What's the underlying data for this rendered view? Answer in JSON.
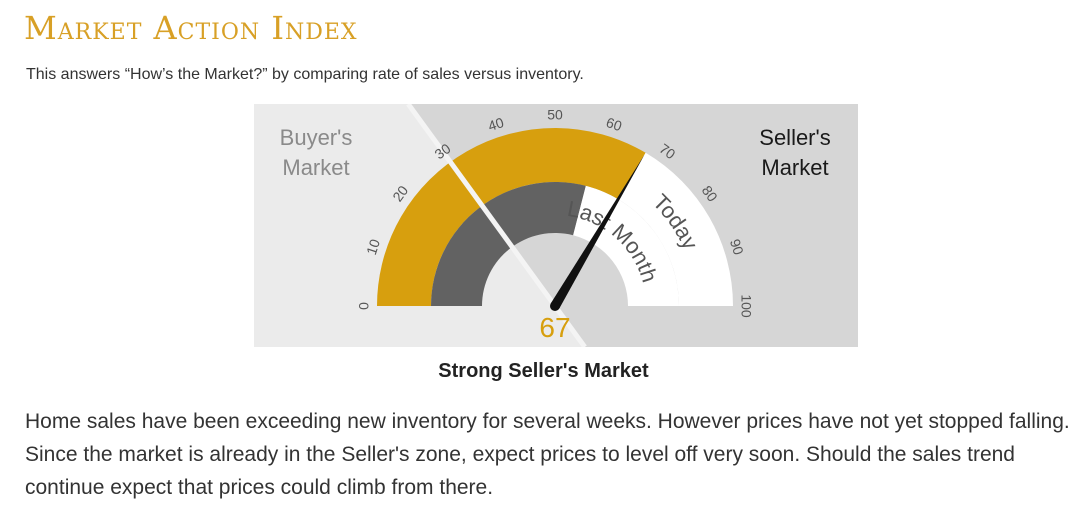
{
  "header": {
    "title": "Market Action Index",
    "subtitle": "This answers “How’s the Market?” by comparing rate of sales versus inventory."
  },
  "chart_data": {
    "type": "gauge",
    "min": 0,
    "max": 100,
    "ticks": [
      "0",
      "10",
      "20",
      "30",
      "40",
      "50",
      "60",
      "70",
      "80",
      "90",
      "100"
    ],
    "value": 67,
    "value_label": "67",
    "last_month_value": 58,
    "buyers_threshold": 30,
    "zones": [
      {
        "label": "Buyer's Market",
        "from": 0,
        "to": 30
      },
      {
        "label": "Seller's Market",
        "from": 30,
        "to": 100
      }
    ],
    "buyers_label_lines": [
      "Buyer's",
      "Market"
    ],
    "sellers_label_lines": [
      "Seller's",
      "Market"
    ],
    "bands": [
      {
        "label": "",
        "value": 67,
        "color": "#d79f0e"
      },
      {
        "label": "Last Month",
        "value": 58,
        "color": "#626262"
      },
      {
        "label": "Today",
        "value": 67,
        "color": "#ffffff"
      }
    ],
    "colors": {
      "buyers_bg": "#ebebeb",
      "sellers_bg": "#d6d6d6",
      "today_band": "#d79f0e",
      "last_month_band": "#626262",
      "needle": "#111111",
      "value_text": "#d79f0e"
    }
  },
  "status_label": "Strong Seller's Market",
  "description": "Home sales have been exceeding new inventory for several weeks. However prices have not yet stopped falling. Since the market is already in the Seller's zone, expect prices to level off very soon. Should the sales trend continue expect that prices could climb from there."
}
